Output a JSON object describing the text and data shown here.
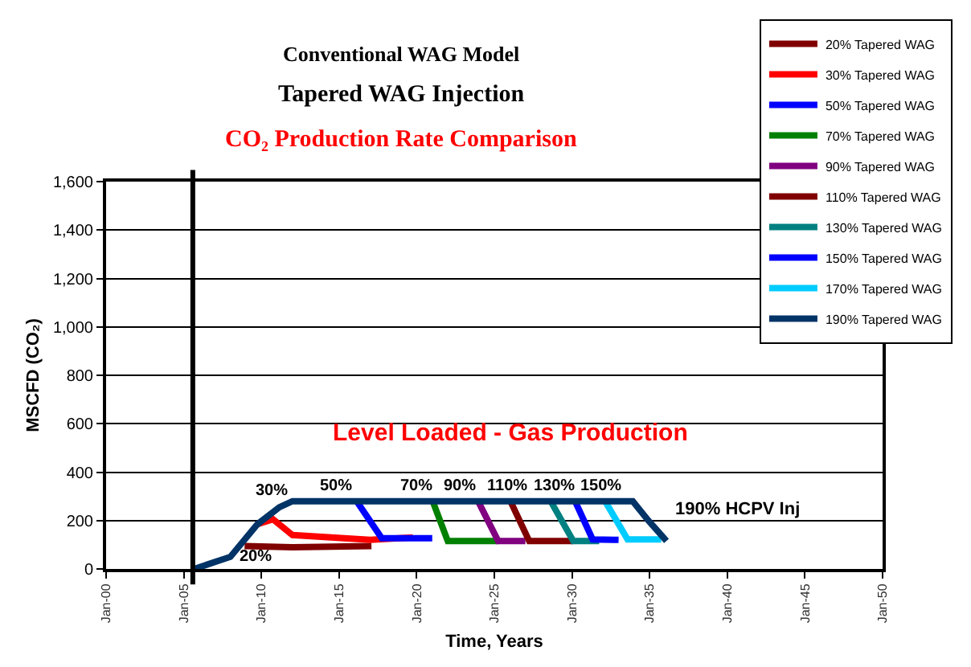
{
  "chart_data": {
    "type": "line",
    "title": "Conventional WAG Model",
    "subtitle": "Tapered WAG Injection",
    "xlabel": "Time, Years",
    "ylabel": "MSCFD (CO₂)",
    "xlim": [
      "2000-01",
      "2050-01"
    ],
    "xticks": [
      {
        "value": "2000-01",
        "label": "Jan-00"
      },
      {
        "value": "2005-01",
        "label": "Jan-05"
      },
      {
        "value": "2010-01",
        "label": "Jan-10"
      },
      {
        "value": "2015-01",
        "label": "Jan-15"
      },
      {
        "value": "2020-01",
        "label": "Jan-20"
      },
      {
        "value": "2025-01",
        "label": "Jan-25"
      },
      {
        "value": "2030-01",
        "label": "Jan-30"
      },
      {
        "value": "2035-01",
        "label": "Jan-35"
      },
      {
        "value": "2040-01",
        "label": "Jan-40"
      },
      {
        "value": "2045-01",
        "label": "Jan-45"
      },
      {
        "value": "2050-01",
        "label": "Jan-50"
      }
    ],
    "ylim": [
      0,
      1600
    ],
    "yticks": [
      {
        "value": 0,
        "label": "0"
      },
      {
        "value": 200,
        "label": "200"
      },
      {
        "value": 400,
        "label": "400"
      },
      {
        "value": 600,
        "label": "600"
      },
      {
        "value": 800,
        "label": "800"
      },
      {
        "value": 1000,
        "label": "1,000"
      },
      {
        "value": 1200,
        "label": "1,200"
      },
      {
        "value": 1400,
        "label": "1,400"
      },
      {
        "value": 1600,
        "label": "1,600"
      }
    ],
    "grid": "y",
    "legend": "top right",
    "marker": "none",
    "line_style": "solid",
    "series": [
      {
        "name": "20% Tapered WAG",
        "color": "#800000",
        "x": [
          "2008-12",
          "2012-01",
          "2017-02"
        ],
        "values": [
          95,
          90,
          95
        ]
      },
      {
        "name": "30% Tapered WAG",
        "color": "#ff0000",
        "x": [
          "2009-10",
          "2010-10",
          "2012-01",
          "2017-01",
          "2019-10"
        ],
        "values": [
          185,
          205,
          140,
          120,
          130
        ]
      },
      {
        "name": "50% Tapered WAG",
        "color": "#0000ff",
        "x": [
          "2016-02",
          "2017-10",
          "2021-01"
        ],
        "values": [
          285,
          127,
          127
        ]
      },
      {
        "name": "70% Tapered WAG",
        "color": "#008000",
        "x": [
          "2021-01",
          "2022-01",
          "2025-04"
        ],
        "values": [
          285,
          115,
          115
        ]
      },
      {
        "name": "90% Tapered WAG",
        "color": "#800080",
        "x": [
          "2023-12",
          "2025-04",
          "2027-01"
        ],
        "values": [
          285,
          115,
          115
        ]
      },
      {
        "name": "110% Tapered WAG",
        "color": "#800000",
        "x": [
          "2026-01",
          "2027-04",
          "2030-02"
        ],
        "values": [
          285,
          115,
          115
        ]
      },
      {
        "name": "130% Tapered WAG",
        "color": "#008080",
        "x": [
          "2028-08",
          "2030-02",
          "2031-10"
        ],
        "values": [
          285,
          115,
          115
        ]
      },
      {
        "name": "150% Tapered WAG",
        "color": "#0000ff",
        "x": [
          "2030-03",
          "2031-05",
          "2033-01"
        ],
        "values": [
          285,
          122,
          120
        ]
      },
      {
        "name": "170% Tapered WAG",
        "color": "#00ccff",
        "x": [
          "2032-02",
          "2033-08",
          "2035-10"
        ],
        "values": [
          285,
          122,
          122
        ]
      },
      {
        "name": "190% Tapered WAG",
        "color": "#003366",
        "x": [
          "2005-09",
          "2008-01",
          "2009-10",
          "2011-03",
          "2012-01",
          "2033-12",
          "2034-12",
          "2036-02"
        ],
        "values": [
          0,
          50,
          185,
          255,
          280,
          280,
          200,
          116
        ]
      }
    ],
    "ref_lines": [
      {
        "axis": "x",
        "value": "2005-08",
        "color": "#000000"
      }
    ],
    "annotations": [
      "CO₂ Production Rate Comparison",
      "Level Loaded - Gas Production",
      "20%",
      "30%",
      "50%",
      "70%",
      "90%",
      "110%",
      "130%",
      "150%",
      "190% HCPV Inj"
    ]
  }
}
